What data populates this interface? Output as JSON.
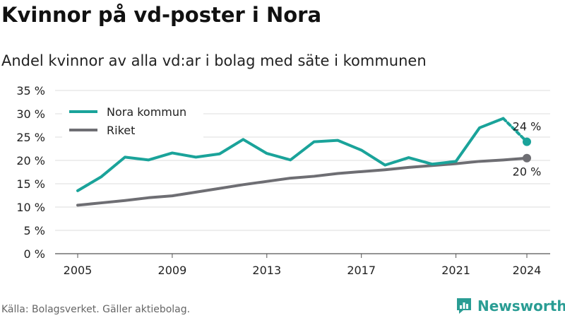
{
  "header": {
    "title": "Kvinnor på vd-poster i Nora",
    "subtitle": "Andel kvinnor av alla vd:ar i bolag med säte i kommunen"
  },
  "footer": {
    "source": "Källa: Bolagsverket. Gäller aktiebolag.",
    "brand": "Newsworthy"
  },
  "colors": {
    "nora": "#1aa39a",
    "riket": "#6e6e73",
    "grid": "#dddddd"
  },
  "chart_data": {
    "type": "line",
    "x": [
      2005,
      2006,
      2007,
      2008,
      2009,
      2010,
      2011,
      2012,
      2013,
      2014,
      2015,
      2016,
      2017,
      2018,
      2019,
      2020,
      2021,
      2022,
      2023,
      2024
    ],
    "xticks": [
      2005,
      2009,
      2013,
      2017,
      2021,
      2024
    ],
    "ylim": [
      0,
      35
    ],
    "yticks": [
      0,
      5,
      10,
      15,
      20,
      25,
      30,
      35
    ],
    "ytick_labels": [
      "0 %",
      "5 %",
      "10 %",
      "15 %",
      "20 %",
      "25 %",
      "30 %",
      "35 %"
    ],
    "grid": true,
    "legend_position": "top-left",
    "series": [
      {
        "name": "Nora kommun",
        "color": "#1aa39a",
        "values": [
          13.5,
          16.5,
          20.7,
          20.1,
          21.6,
          20.7,
          21.4,
          24.5,
          21.5,
          20.1,
          24.0,
          24.3,
          22.2,
          19.0,
          20.6,
          19.2,
          19.8,
          27.0,
          29.0,
          24.0
        ],
        "end_label": "24 %"
      },
      {
        "name": "Riket",
        "color": "#6e6e73",
        "values": [
          10.4,
          10.9,
          11.4,
          12.0,
          12.4,
          13.2,
          14.0,
          14.8,
          15.5,
          16.2,
          16.6,
          17.2,
          17.6,
          18.0,
          18.5,
          18.9,
          19.3,
          19.8,
          20.1,
          20.5
        ],
        "end_label": "20 %"
      }
    ]
  }
}
